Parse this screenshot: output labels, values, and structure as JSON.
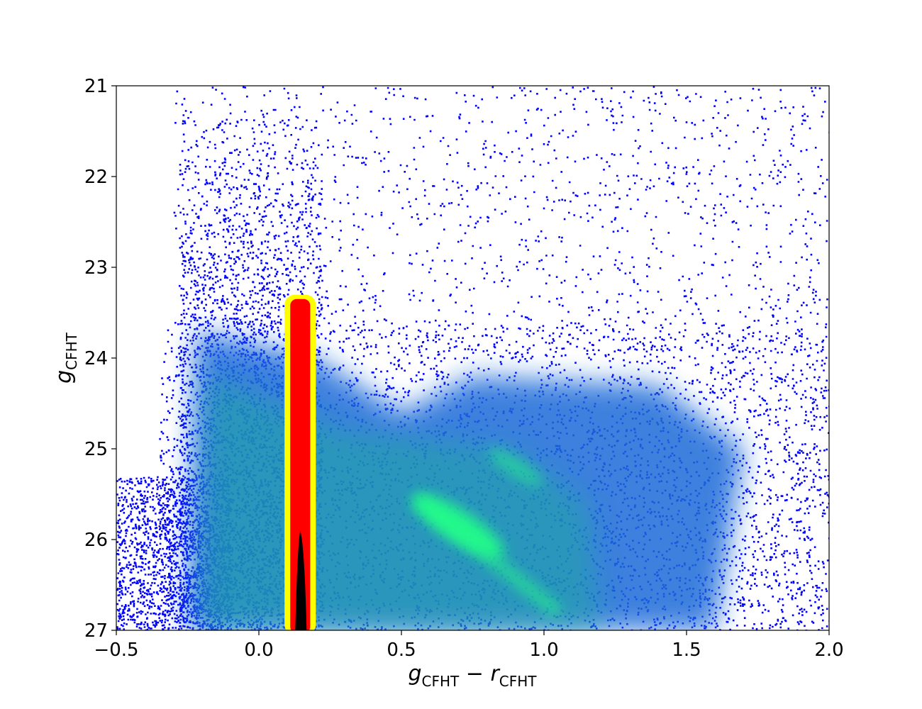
{
  "chart_data": {
    "type": "scatter",
    "title": "",
    "xlabel": {
      "main": "g",
      "main_sub": "CFHT",
      "op": " − ",
      "second": "r",
      "second_sub": "CFHT"
    },
    "ylabel": {
      "main": "g",
      "main_sub": "CFHT"
    },
    "xlim": [
      -0.5,
      2.0
    ],
    "ylim": [
      27,
      21
    ],
    "y_inverted": true,
    "grid": false,
    "legend": "none",
    "x_ticks": [
      {
        "value": -0.5,
        "label": "−0.5"
      },
      {
        "value": 0.0,
        "label": "0.0"
      },
      {
        "value": 0.5,
        "label": "0.5"
      },
      {
        "value": 1.0,
        "label": "1.0"
      },
      {
        "value": 1.5,
        "label": "1.5"
      },
      {
        "value": 2.0,
        "label": "2.0"
      }
    ],
    "y_ticks": [
      {
        "value": 21,
        "label": "21"
      },
      {
        "value": 22,
        "label": "22"
      },
      {
        "value": 23,
        "label": "23"
      },
      {
        "value": 24,
        "label": "24"
      },
      {
        "value": 25,
        "label": "25"
      },
      {
        "value": 26,
        "label": "26"
      },
      {
        "value": 27,
        "label": "27"
      }
    ],
    "colors": {
      "points": "#0000ff",
      "density_low": "#1e6ad8",
      "density_mid": "#1aa8a0",
      "density_high": "#22ff88",
      "selection_outer": "#ffff00",
      "selection_inner": "#ff0000",
      "selection_core": "#000000"
    },
    "density_regions": [
      {
        "name": "blue plume",
        "x_center": -0.15,
        "x_width": 0.3,
        "y_top": 23.5,
        "y_bottom": 27.0,
        "level": 0.35
      },
      {
        "name": "main sequence turnoff",
        "x_center": 0.7,
        "y_center": 25.85,
        "level": 1.0
      },
      {
        "name": "upper red sequence",
        "x_center": 0.9,
        "y_center": 25.2,
        "level": 0.55
      },
      {
        "name": "faint red spread",
        "x_center": 1.0,
        "x_width": 1.0,
        "y_top": 24.3,
        "y_bottom": 27.0,
        "level": 0.3
      }
    ],
    "selection_box": {
      "x_min": 0.11,
      "x_max": 0.18,
      "y_top": 23.35,
      "y_bottom": 27.0,
      "core": {
        "x_center": 0.15,
        "y_top": 25.9,
        "y_bottom": 27.0
      }
    }
  }
}
